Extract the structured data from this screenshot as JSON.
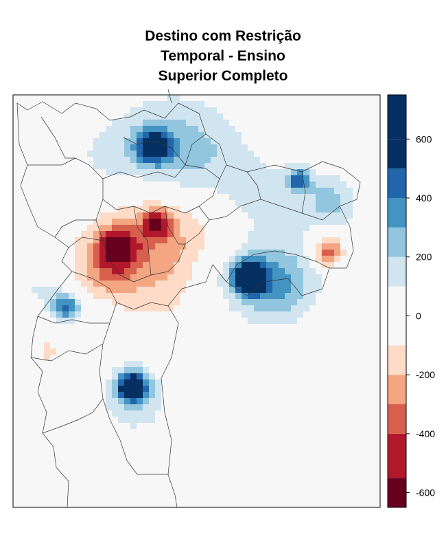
{
  "title_lines": [
    "Destino com Restrição",
    "Temporal - Ensino",
    "Superior Completo"
  ],
  "legend": {
    "breaks": [
      -650,
      -550,
      -400,
      -300,
      -200,
      -100,
      0,
      100,
      200,
      300,
      400,
      500,
      600,
      750
    ],
    "colors": [
      "#67001F",
      "#B2182B",
      "#D6604D",
      "#F4A582",
      "#FDDBC7",
      "#F7F7F7",
      "#F7F7F7",
      "#D1E5F0",
      "#92C5DE",
      "#4393C3",
      "#2166AC",
      "#053061",
      "#053061"
    ],
    "tick_labels": [
      "600",
      "400",
      "200",
      "0",
      "-200",
      "-400",
      "-600"
    ],
    "tick_values": [
      600,
      400,
      200,
      0,
      -200,
      -400,
      -600
    ]
  },
  "map": {
    "background_color": "#F7F7F7",
    "outline_color": "#333333",
    "hotspots": [
      {
        "id": "centro-sul-negativo",
        "value": -580
      },
      {
        "id": "centro-negativo",
        "value": -420
      },
      {
        "id": "leste-negativo",
        "value": -420
      },
      {
        "id": "leste-positivo",
        "value": 720
      },
      {
        "id": "norte-positivo",
        "value": 560
      },
      {
        "id": "sul-positivo",
        "value": 690
      },
      {
        "id": "nordeste-positivo",
        "value": 420
      },
      {
        "id": "oeste-positivo",
        "value": 400
      },
      {
        "id": "sudeste-negativo",
        "value": -100
      }
    ]
  }
}
